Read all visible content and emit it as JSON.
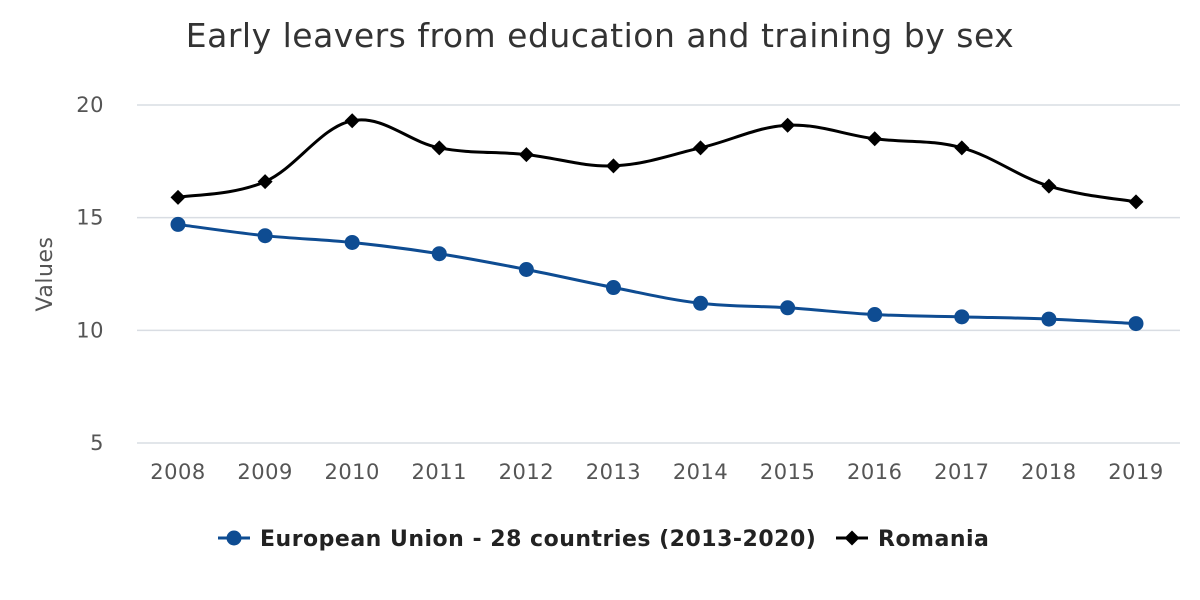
{
  "chart_data": {
    "type": "line",
    "title": "Early leavers from education and training by sex",
    "ylabel": "Values",
    "xlabel": "",
    "categories": [
      "2008",
      "2009",
      "2010",
      "2011",
      "2012",
      "2013",
      "2014",
      "2015",
      "2016",
      "2017",
      "2018",
      "2019"
    ],
    "ylim": [
      5,
      20
    ],
    "yticks": [
      5,
      10,
      15,
      20
    ],
    "grid": true,
    "legend_position": "bottom",
    "series": [
      {
        "name": "European Union - 28 countries (2013-2020)",
        "color": "#0e4c92",
        "marker": "circle",
        "values": [
          14.7,
          14.2,
          13.9,
          13.4,
          12.7,
          11.9,
          11.2,
          11.0,
          10.7,
          10.6,
          10.5,
          10.3
        ]
      },
      {
        "name": "Romania",
        "color": "#000000",
        "marker": "diamond",
        "values": [
          15.9,
          16.6,
          19.3,
          18.1,
          17.8,
          17.3,
          18.1,
          19.1,
          18.5,
          18.1,
          16.4,
          15.7
        ]
      }
    ]
  }
}
